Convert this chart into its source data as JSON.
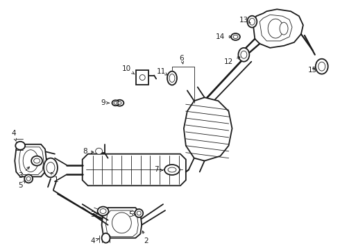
{
  "bg_color": "#ffffff",
  "line_color": "#1a1a1a",
  "lw_main": 1.3,
  "lw_thin": 0.6,
  "lw_med": 0.9,
  "label_fontsize": 7.5,
  "arrow_lw": 0.65
}
